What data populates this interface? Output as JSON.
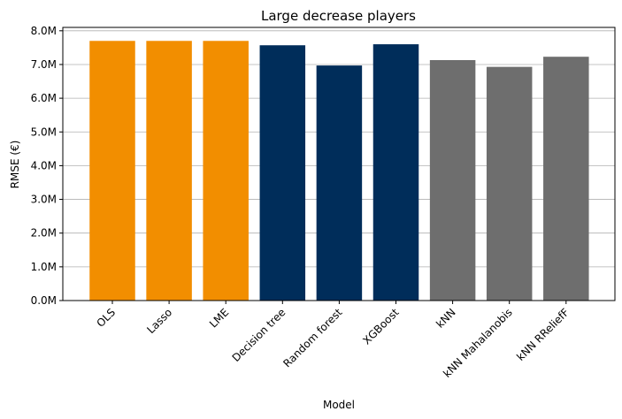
{
  "chart_data": {
    "type": "bar",
    "title": "Large decrease players",
    "xlabel": "Model",
    "ylabel": "RMSE (€)",
    "categories": [
      "OLS",
      "Lasso",
      "LME",
      "Decision tree",
      "Random forest",
      "XGBoost",
      "kNN",
      "kNN Mahalanobis",
      "kNN RReliefF"
    ],
    "values": [
      7.7,
      7.7,
      7.7,
      7.57,
      6.97,
      7.6,
      7.13,
      6.93,
      7.23
    ],
    "colors": [
      "#f28e00",
      "#f28e00",
      "#f28e00",
      "#002d5a",
      "#002d5a",
      "#002d5a",
      "#6e6e6e",
      "#6e6e6e",
      "#6e6e6e"
    ],
    "ylim": [
      0,
      8.1
    ],
    "yticks": [
      0,
      1,
      2,
      3,
      4,
      5,
      6,
      7,
      8
    ],
    "ytick_labels": [
      "0.0M",
      "1.0M",
      "2.0M",
      "3.0M",
      "4.0M",
      "5.0M",
      "6.0M",
      "7.0M",
      "8.0M"
    ],
    "grid": "y",
    "grid_color": "#b0b0b0"
  }
}
